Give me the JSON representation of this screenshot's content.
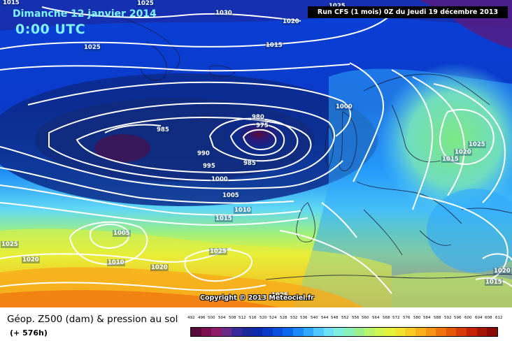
{
  "header": {
    "date": "Dimanche 12 janvier 2014",
    "time": "0:00 UTC",
    "run": "Run CFS (1 mois) 0Z du Jeudi 19 décembre 2013"
  },
  "copyright": "Copyright © 2013 Meteociel.fr",
  "legend": {
    "title": "Géop. Z500 (dam) & pression au sol",
    "subtitle": "(+ 576h)",
    "scale_values": [
      "492",
      "496",
      "500",
      "504",
      "508",
      "512",
      "516",
      "520",
      "524",
      "528",
      "532",
      "536",
      "540",
      "544",
      "548",
      "552",
      "556",
      "560",
      "564",
      "568",
      "572",
      "576",
      "580",
      "584",
      "588",
      "592",
      "596",
      "600",
      "604",
      "608",
      "612"
    ],
    "scale_colors": [
      "#5a0a3a",
      "#7a1050",
      "#901a6a",
      "#6a2a8a",
      "#3a2a9a",
      "#1a2a9a",
      "#0a2ab0",
      "#0a3ac8",
      "#0a50dc",
      "#0a68ee",
      "#1a88f8",
      "#30a8fc",
      "#50c8fc",
      "#70e0f6",
      "#80eee0",
      "#88f0b8",
      "#9cf08c",
      "#b8f468",
      "#d0f450",
      "#e4f23c",
      "#f2e42e",
      "#f8cc22",
      "#f8b01a",
      "#f89414",
      "#f0740e",
      "#e45808",
      "#d63c06",
      "#c42404",
      "#a81404",
      "#8a0a04"
    ]
  },
  "map": {
    "isobar_labels": [
      {
        "id": "1030",
        "text": "1030"
      },
      {
        "id": "1020a",
        "text": "1020"
      },
      {
        "id": "1025a",
        "text": "1025"
      },
      {
        "id": "1015a",
        "text": "1015"
      },
      {
        "id": "1025b",
        "text": "1025"
      },
      {
        "id": "1000a",
        "text": "1000"
      },
      {
        "id": "980",
        "text": "980"
      },
      {
        "id": "975",
        "text": "975"
      },
      {
        "id": "985a",
        "text": "985"
      },
      {
        "id": "990",
        "text": "990"
      },
      {
        "id": "995",
        "text": "995"
      },
      {
        "id": "985b",
        "text": "985"
      },
      {
        "id": "1000b",
        "text": "1000"
      },
      {
        "id": "1005a",
        "text": "1005"
      },
      {
        "id": "1010a",
        "text": "1010"
      },
      {
        "id": "1015b",
        "text": "1015"
      },
      {
        "id": "1025c",
        "text": "1025"
      },
      {
        "id": "1020b",
        "text": "1020"
      },
      {
        "id": "1015c",
        "text": "1015"
      },
      {
        "id": "1005b",
        "text": "1005"
      },
      {
        "id": "1020c",
        "text": "1020"
      },
      {
        "id": "1010b",
        "text": "1010"
      },
      {
        "id": "1020d",
        "text": "1020"
      },
      {
        "id": "1015d",
        "text": "1015"
      },
      {
        "id": "1025d",
        "text": "1025"
      },
      {
        "id": "1025e",
        "text": "1025"
      },
      {
        "id": "1020e",
        "text": "1020"
      },
      {
        "id": "1015e",
        "text": "1015"
      },
      {
        "id": "1025f",
        "text": "1025"
      },
      {
        "id": "1025g",
        "text": "1025"
      }
    ]
  }
}
